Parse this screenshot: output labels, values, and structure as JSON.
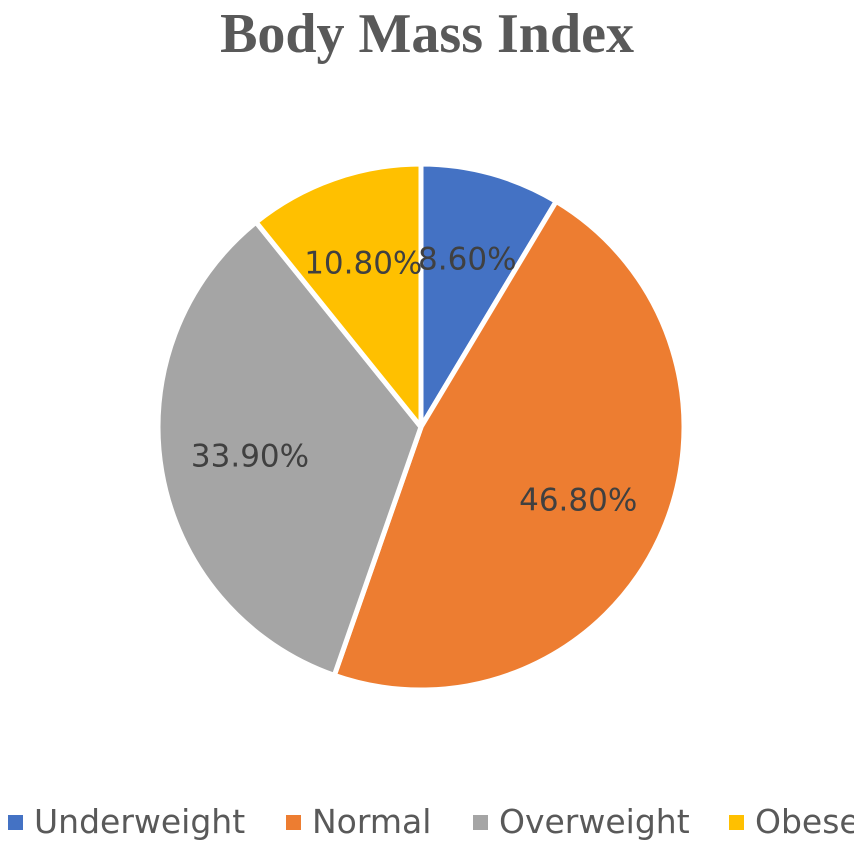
{
  "chart_data": {
    "type": "pie",
    "title": "Body Mass Index",
    "categories": [
      "Underweight",
      "Normal",
      "Overweight",
      "Obese"
    ],
    "values": [
      8.6,
      46.8,
      33.9,
      10.8
    ],
    "data_labels": [
      "8.60%",
      "46.80%",
      "33.90%",
      "10.80%"
    ],
    "colors": [
      "#4472C4",
      "#ED7D31",
      "#A5A5A5",
      "#FFC000"
    ],
    "start_angle": "12 o'clock",
    "direction": "clockwise",
    "legend_position": "bottom"
  }
}
